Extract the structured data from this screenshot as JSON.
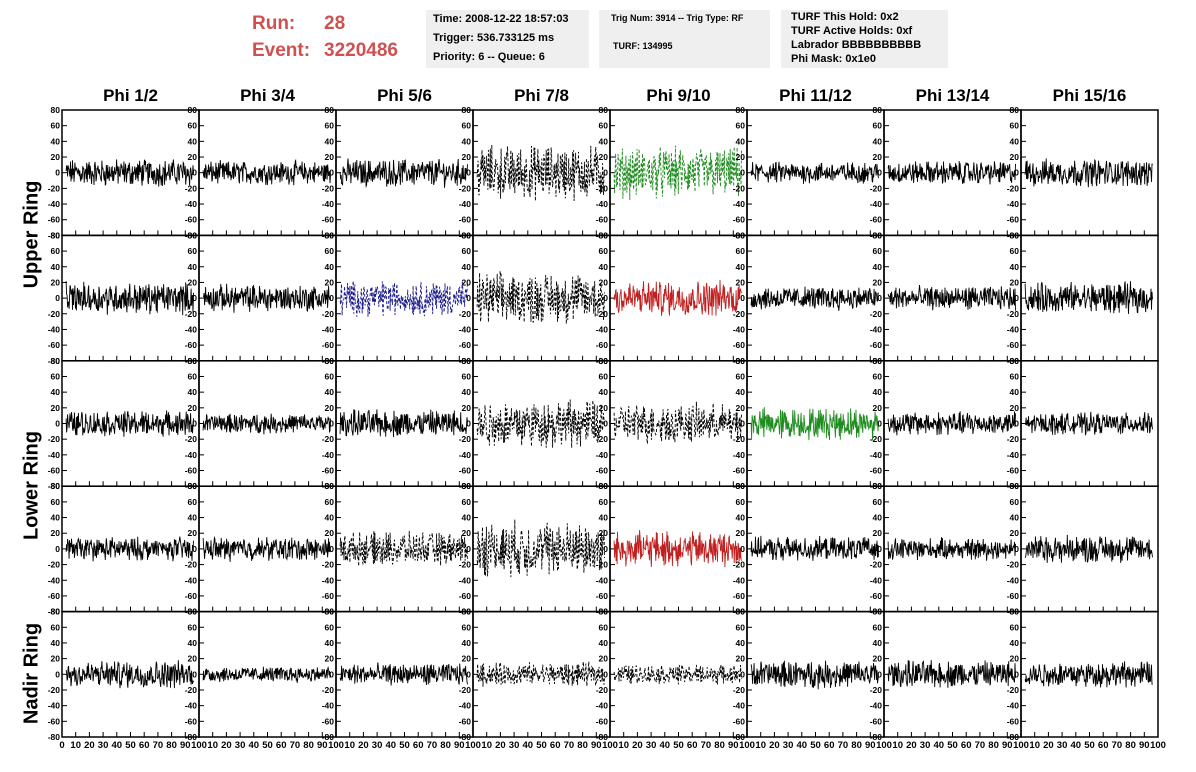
{
  "header": {
    "run_label": "Run:",
    "run_value": "28",
    "event_label": "Event:",
    "event_value": "3220486"
  },
  "info_boxes": {
    "time": "Time: 2008-12-22 18:57:03",
    "trigger": "Trigger: 536.733125 ms",
    "priority": "Priority: 6 -- Queue: 6",
    "trig_num": "Trig Num: 3914 -- Trig Type: RF",
    "turf": "TURF: 134995",
    "turf_this_hold": "TURF This Hold: 0x2",
    "turf_active_holds": "TURF Active Holds: 0xf",
    "labrador": "Labrador BBBBBBBBBB",
    "phi_mask": "Phi Mask: 0x1e0"
  },
  "ring_labels": [
    "Upper Ring",
    "Lower Ring",
    "Nadir Ring"
  ],
  "chart_data": {
    "type": "line",
    "columns": [
      "Phi 1/2",
      "Phi 3/4",
      "Phi 5/6",
      "Phi 7/8",
      "Phi 9/10",
      "Phi 11/12",
      "Phi 13/14",
      "Phi 15/16"
    ],
    "xlim": [
      0,
      100
    ],
    "ylim": [
      -80,
      80
    ],
    "x_ticks": [
      0,
      10,
      20,
      30,
      40,
      50,
      60,
      70,
      80,
      90,
      100
    ],
    "y_ticks": [
      -80,
      -60,
      -40,
      -20,
      0,
      20,
      40,
      60,
      80
    ],
    "grid": false,
    "rows": [
      {
        "styles": [
          "solid",
          "solid",
          "solid",
          "dashed",
          "dashed",
          "solid",
          "solid",
          "solid"
        ],
        "colors": [
          "#000000",
          "#000000",
          "#000000",
          "#000000",
          "#1e8c1e",
          "#000000",
          "#000000",
          "#000000"
        ],
        "amplitudes": [
          14,
          12,
          14,
          28,
          26,
          11,
          12,
          14
        ]
      },
      {
        "styles": [
          "solid",
          "solid",
          "dashed",
          "dashed",
          "solid",
          "solid",
          "solid",
          "solid"
        ],
        "colors": [
          "#000000",
          "#000000",
          "#1a1a8c",
          "#000000",
          "#c02020",
          "#000000",
          "#000000",
          "#000000"
        ],
        "amplitudes": [
          16,
          14,
          18,
          26,
          18,
          12,
          12,
          16
        ]
      },
      {
        "styles": [
          "solid",
          "solid",
          "solid",
          "dashed",
          "dashed",
          "solid",
          "solid",
          "solid"
        ],
        "colors": [
          "#000000",
          "#000000",
          "#000000",
          "#000000",
          "#000000",
          "#1e8c1e",
          "#000000",
          "#000000"
        ],
        "amplitudes": [
          13,
          10,
          14,
          24,
          20,
          16,
          12,
          11
        ]
      },
      {
        "styles": [
          "solid",
          "solid",
          "dashed",
          "dashed",
          "solid",
          "solid",
          "solid",
          "solid"
        ],
        "colors": [
          "#000000",
          "#000000",
          "#000000",
          "#000000",
          "#c02020",
          "#000000",
          "#000000",
          "#000000"
        ],
        "amplitudes": [
          12,
          12,
          17,
          28,
          18,
          12,
          11,
          14
        ]
      },
      {
        "styles": [
          "solid",
          "solid",
          "solid",
          "dashed",
          "dashed",
          "solid",
          "solid",
          "solid"
        ],
        "colors": [
          "#000000",
          "#000000",
          "#000000",
          "#000000",
          "#000000",
          "#000000",
          "#000000",
          "#000000"
        ],
        "amplitudes": [
          14,
          8,
          11,
          12,
          10,
          14,
          14,
          13
        ]
      }
    ]
  }
}
